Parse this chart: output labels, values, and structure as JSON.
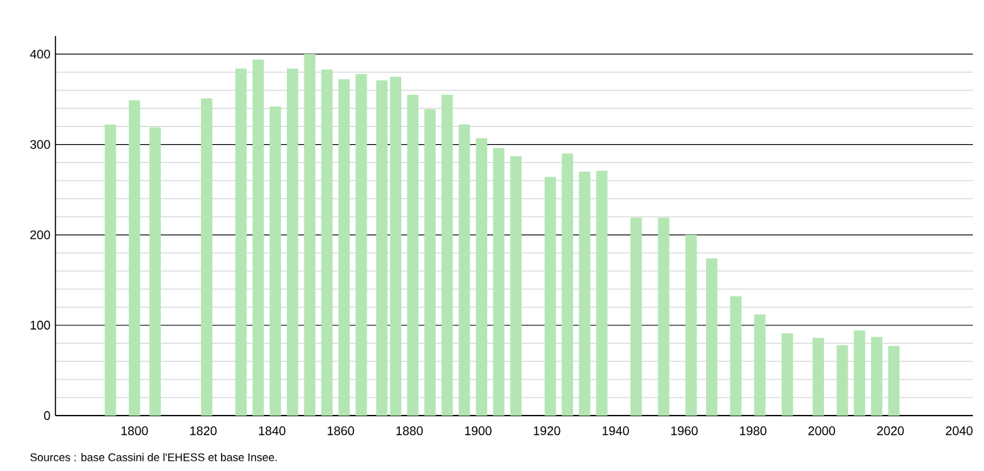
{
  "chart_data": {
    "type": "bar",
    "x": [
      1793,
      1800,
      1806,
      1821,
      1831,
      1836,
      1841,
      1846,
      1851,
      1856,
      1861,
      1866,
      1872,
      1876,
      1881,
      1886,
      1891,
      1896,
      1901,
      1906,
      1911,
      1921,
      1926,
      1931,
      1936,
      1946,
      1954,
      1962,
      1968,
      1975,
      1982,
      1990,
      1999,
      2006,
      2011,
      2016,
      2021
    ],
    "values": [
      322,
      349,
      319,
      351,
      384,
      394,
      342,
      384,
      400,
      383,
      372,
      378,
      371,
      375,
      355,
      339,
      355,
      322,
      307,
      296,
      287,
      264,
      290,
      270,
      271,
      219,
      219,
      200,
      174,
      132,
      112,
      91,
      86,
      78,
      94,
      87,
      77
    ],
    "color": "#b3e6b3",
    "xlim": [
      1777,
      2044
    ],
    "ylim": [
      0,
      420
    ],
    "xticks": [
      1800,
      1820,
      1840,
      1860,
      1880,
      1900,
      1920,
      1940,
      1960,
      1980,
      2000,
      2020,
      2040
    ],
    "yticks": [
      0,
      100,
      200,
      300,
      400
    ],
    "grid": "y",
    "annotations": [
      "Sources : base Cassini de l'EHESS et base Insee."
    ]
  }
}
